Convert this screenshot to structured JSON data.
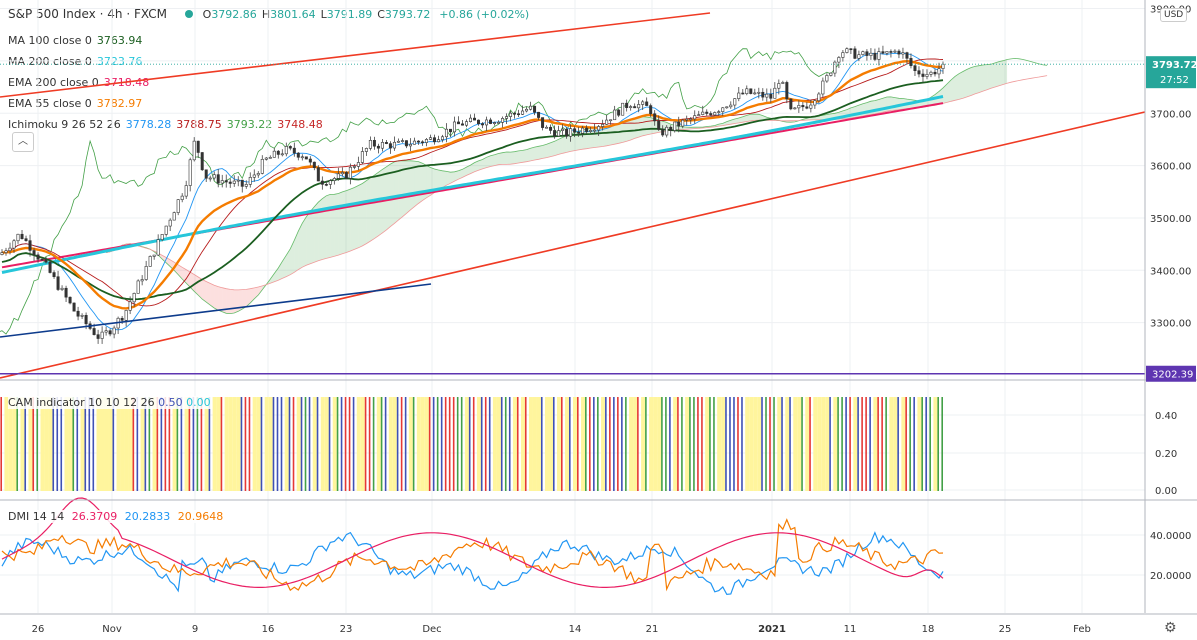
{
  "symbol": {
    "name": "S&P 500 Index",
    "interval": "4h",
    "source": "FXCM",
    "sep": "·",
    "ohlc": [
      {
        "k": "O",
        "v": "3792.86"
      },
      {
        "k": "H",
        "v": "3801.64"
      },
      {
        "k": "L",
        "v": "3791.89"
      },
      {
        "k": "C",
        "v": "3793.72"
      }
    ],
    "change": "+0.86 (+0.02%)"
  },
  "indicators_legend": [
    {
      "label": "MA 100 close 0",
      "values": [
        "3763.94"
      ],
      "colors": [
        "#1b5e20"
      ]
    },
    {
      "label": "MA 200 close 0",
      "values": [
        "3723.76"
      ],
      "colors": [
        "#26c6da"
      ]
    },
    {
      "label": "EMA 200 close 0",
      "values": [
        "3718.48"
      ],
      "colors": [
        "#e91e63"
      ]
    },
    {
      "label": "EMA 55 close 0",
      "values": [
        "3782.97"
      ],
      "colors": [
        "#f57c00"
      ]
    },
    {
      "label": "Ichimoku 9 26 52 26",
      "values": [
        "3778.28",
        "3788.75",
        "3793.22",
        "3748.48"
      ],
      "colors": [
        "#2196f3",
        "#b71c1c",
        "#43a047",
        "#c62828"
      ]
    }
  ],
  "price_axis": {
    "currency": "USD",
    "ticks": [
      "3900.00",
      "3800.00",
      "3700.00",
      "3600.00",
      "3500.00",
      "3400.00",
      "3300.00"
    ],
    "last_price": "3793.72",
    "countdown": "27:52",
    "horizontal_level": "3202.39"
  },
  "cam_panel": {
    "title": "CAM indicator 10 10 12 26",
    "values": [
      "0.50",
      "0.00"
    ],
    "ticks": [
      "0.40",
      "0.20",
      "0.00"
    ]
  },
  "dmi_panel": {
    "title": "DMI 14 14",
    "values": [
      "26.3709",
      "20.2833",
      "20.9648"
    ],
    "ticks": [
      "40.0000",
      "20.0000"
    ]
  },
  "time_axis": {
    "labels": [
      "26",
      "Nov",
      "9",
      "16",
      "23",
      "Dec",
      "14",
      "21",
      "2021",
      "11",
      "18",
      "25",
      "Feb"
    ]
  },
  "colors": {
    "up": "#26a69a",
    "down": "#ef5350",
    "ma100": "#1b5e20",
    "ma200": "#26c6da",
    "ema200": "#e91e63",
    "ema55": "#f57c00",
    "tenkan": "#2196f3",
    "kijun": "#b71c1c",
    "chikou": "#43a047",
    "trend": "#ef3b24",
    "blue_line": "#0d3b8c",
    "level": "#5e35b1",
    "cam_yellow": "#fff59d",
    "cam_blue": "#3f51b5",
    "cam_green": "#43a047",
    "cam_red": "#e53935",
    "dmi_plus": "#2196f3",
    "dmi_minus": "#f57c00",
    "adx": "#e91e63"
  },
  "chart_data": {
    "type": "line",
    "series": [
      {
        "name": "S&P 500 Index",
        "x": [
          "26",
          "Nov",
          "9",
          "16",
          "23",
          "Dec",
          "14",
          "21",
          "2021",
          "11",
          "18"
        ],
        "values": [
          3430,
          3290,
          3620,
          3620,
          3570,
          3650,
          3670,
          3700,
          3780,
          3810,
          3793.72
        ]
      }
    ],
    "ylim": [
      3150,
      3920
    ]
  }
}
